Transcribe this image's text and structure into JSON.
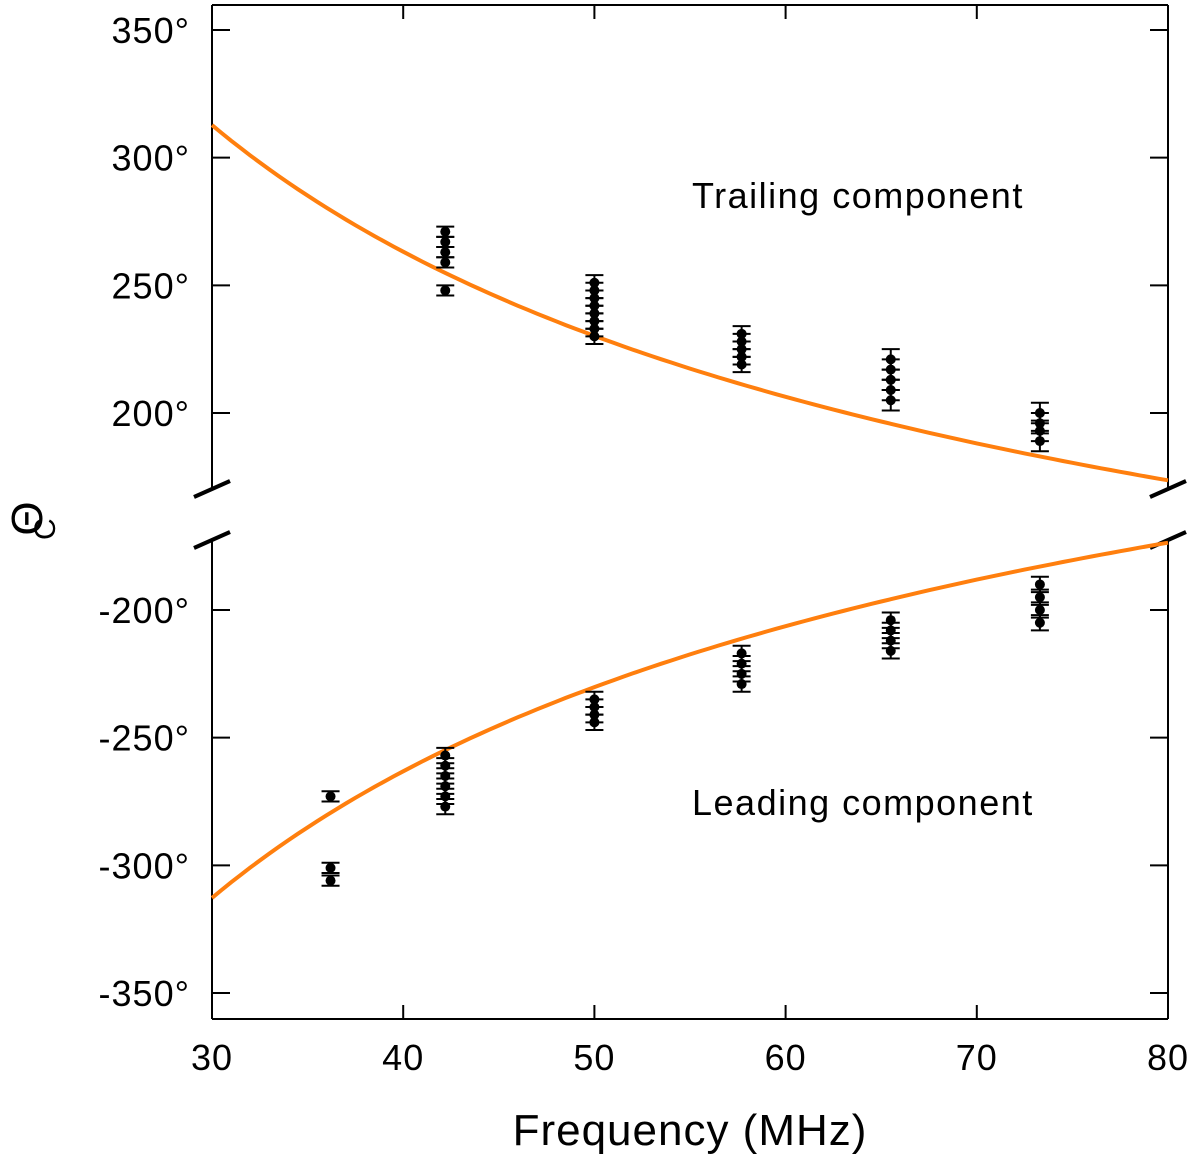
{
  "chart_data": {
    "type": "scatter",
    "xlabel": "Frequency (MHz)",
    "ylabel": "Θ",
    "ylabel_subscript": "C",
    "xlim": [
      30,
      80
    ],
    "x_ticks": [
      "30",
      "40",
      "50",
      "60",
      "70",
      "80"
    ],
    "broken_y_axis": true,
    "panels": [
      {
        "name": "trailing",
        "ylim": [
          175,
          360
        ],
        "y_ticks": [
          {
            "value": 350,
            "label": "350°"
          },
          {
            "value": 300,
            "label": "300°"
          },
          {
            "value": 250,
            "label": "250°"
          },
          {
            "value": 200,
            "label": "200°"
          }
        ],
        "annotation": "Trailing component",
        "fit": {
          "model": "k / f^0.6",
          "k": 2407,
          "exponent": -0.6
        },
        "points": [
          {
            "x": 42.2,
            "y": 271,
            "err": 2
          },
          {
            "x": 42.2,
            "y": 267,
            "err": 2
          },
          {
            "x": 42.2,
            "y": 263,
            "err": 2
          },
          {
            "x": 42.2,
            "y": 259,
            "err": 2
          },
          {
            "x": 42.2,
            "y": 248,
            "err": 2
          },
          {
            "x": 50.0,
            "y": 251,
            "err": 3
          },
          {
            "x": 50.0,
            "y": 248,
            "err": 3
          },
          {
            "x": 50.0,
            "y": 245,
            "err": 3
          },
          {
            "x": 50.0,
            "y": 242,
            "err": 3
          },
          {
            "x": 50.0,
            "y": 239,
            "err": 3
          },
          {
            "x": 50.0,
            "y": 236,
            "err": 3
          },
          {
            "x": 50.0,
            "y": 233,
            "err": 3
          },
          {
            "x": 50.0,
            "y": 230,
            "err": 3
          },
          {
            "x": 57.7,
            "y": 231,
            "err": 3
          },
          {
            "x": 57.7,
            "y": 228,
            "err": 3
          },
          {
            "x": 57.7,
            "y": 225,
            "err": 3
          },
          {
            "x": 57.7,
            "y": 222,
            "err": 3
          },
          {
            "x": 57.7,
            "y": 219,
            "err": 3
          },
          {
            "x": 65.5,
            "y": 221,
            "err": 4
          },
          {
            "x": 65.5,
            "y": 217,
            "err": 4
          },
          {
            "x": 65.5,
            "y": 213,
            "err": 4
          },
          {
            "x": 65.5,
            "y": 209,
            "err": 4
          },
          {
            "x": 65.5,
            "y": 205,
            "err": 4
          },
          {
            "x": 73.3,
            "y": 200,
            "err": 4
          },
          {
            "x": 73.3,
            "y": 196,
            "err": 4
          },
          {
            "x": 73.3,
            "y": 193,
            "err": 4
          },
          {
            "x": 73.3,
            "y": 189,
            "err": 4
          }
        ]
      },
      {
        "name": "leading",
        "ylim": [
          -360,
          -175
        ],
        "y_ticks": [
          {
            "value": -200,
            "label": "-200°"
          },
          {
            "value": -250,
            "label": "-250°"
          },
          {
            "value": -300,
            "label": "-300°"
          },
          {
            "value": -350,
            "label": "-350°"
          }
        ],
        "annotation": "Leading component",
        "fit": {
          "model": "-k / f^0.6",
          "k": 2407,
          "exponent": -0.6
        },
        "points": [
          {
            "x": 36.2,
            "y": -273,
            "err": 2
          },
          {
            "x": 36.2,
            "y": -301,
            "err": 2
          },
          {
            "x": 36.2,
            "y": -306,
            "err": 2
          },
          {
            "x": 42.2,
            "y": -257,
            "err": 3
          },
          {
            "x": 42.2,
            "y": -261,
            "err": 3
          },
          {
            "x": 42.2,
            "y": -265,
            "err": 3
          },
          {
            "x": 42.2,
            "y": -269,
            "err": 3
          },
          {
            "x": 42.2,
            "y": -273,
            "err": 3
          },
          {
            "x": 42.2,
            "y": -277,
            "err": 3
          },
          {
            "x": 50.0,
            "y": -235,
            "err": 3
          },
          {
            "x": 50.0,
            "y": -238,
            "err": 3
          },
          {
            "x": 50.0,
            "y": -241,
            "err": 3
          },
          {
            "x": 50.0,
            "y": -244,
            "err": 3
          },
          {
            "x": 57.7,
            "y": -217,
            "err": 3
          },
          {
            "x": 57.7,
            "y": -221,
            "err": 3
          },
          {
            "x": 57.7,
            "y": -225,
            "err": 3
          },
          {
            "x": 57.7,
            "y": -229,
            "err": 3
          },
          {
            "x": 65.5,
            "y": -204,
            "err": 3
          },
          {
            "x": 65.5,
            "y": -208,
            "err": 3
          },
          {
            "x": 65.5,
            "y": -212,
            "err": 3
          },
          {
            "x": 65.5,
            "y": -216,
            "err": 3
          },
          {
            "x": 73.3,
            "y": -190,
            "err": 3
          },
          {
            "x": 73.3,
            "y": -195,
            "err": 3
          },
          {
            "x": 73.3,
            "y": -200,
            "err": 3
          },
          {
            "x": 73.3,
            "y": -205,
            "err": 3
          }
        ]
      }
    ]
  },
  "colors": {
    "fit_line": "#ff7f0e",
    "points": "#000000",
    "axes": "#000000",
    "background": "#ffffff"
  }
}
